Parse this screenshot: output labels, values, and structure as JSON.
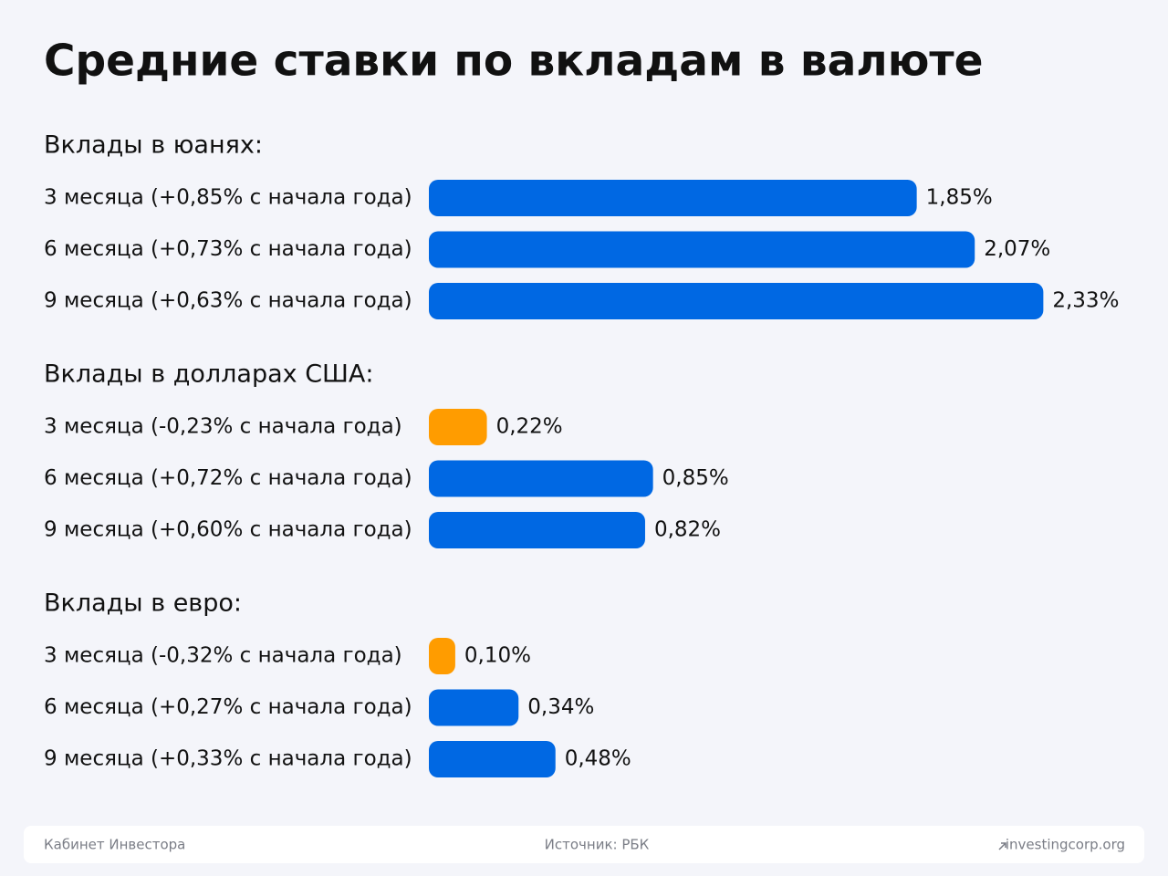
{
  "title": "Средние ставки по вкладам в валюте",
  "chart_data": [
    {
      "type": "bar",
      "title": "Вклады в юанях:",
      "categories": [
        "3 месяца (+0,85% с начала года)",
        "6 месяца (+0,73% с начала года)",
        "9 месяца (+0,63% с начала года)"
      ],
      "values": [
        1.85,
        2.07,
        2.33
      ],
      "value_labels": [
        "1,85%",
        "2,07%",
        "2,33%"
      ],
      "colors": [
        "#0068e3",
        "#0068e3",
        "#0068e3"
      ]
    },
    {
      "type": "bar",
      "title": "Вклады в долларах США:",
      "categories": [
        "3 месяца (-0,23% с начала года)",
        "6 месяца (+0,72% с начала года)",
        "9 месяца (+0,60% с начала года)"
      ],
      "values": [
        0.22,
        0.85,
        0.82
      ],
      "value_labels": [
        "0,22%",
        "0,85%",
        "0,82%"
      ],
      "colors": [
        "#ff9c00",
        "#0068e3",
        "#0068e3"
      ]
    },
    {
      "type": "bar",
      "title": "Вклады в евро:",
      "categories": [
        "3 месяца (-0,32% с начала года)",
        "6 месяца (+0,27% с начала года)",
        "9 месяца (+0,33% с начала года)"
      ],
      "values": [
        0.1,
        0.34,
        0.48
      ],
      "value_labels": [
        "0,10%",
        "0,34%",
        "0,48%"
      ],
      "colors": [
        "#ff9c00",
        "#0068e3",
        "#0068e3"
      ]
    }
  ],
  "footer": {
    "left": "Кабинет Инвестора",
    "center": "Источник: РБК",
    "right": "investingcorp.org"
  }
}
